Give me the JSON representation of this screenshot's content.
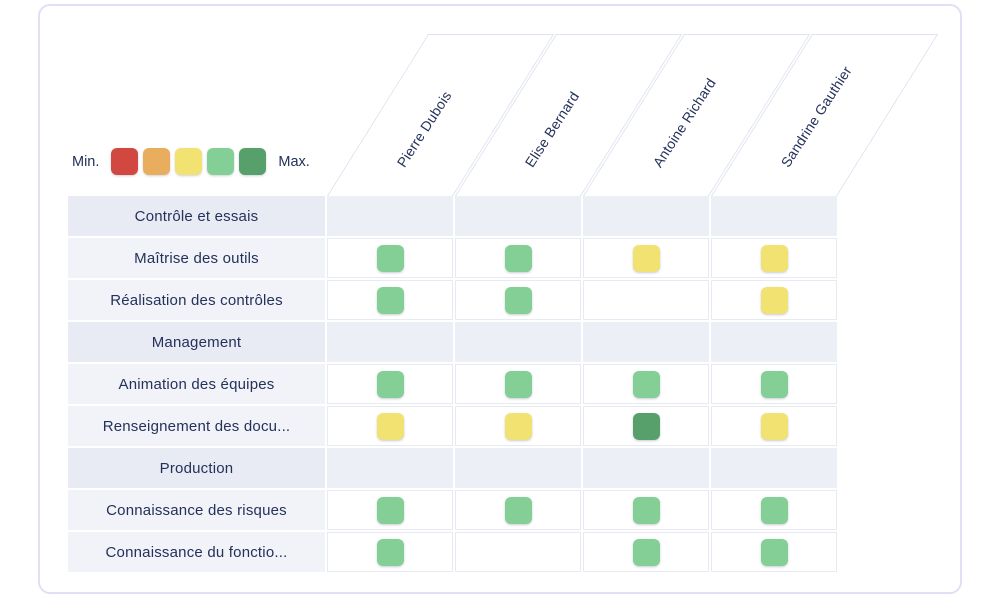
{
  "chart_data": {
    "type": "heatmap",
    "title": "",
    "columns": [
      "Pierre Dubois",
      "Elise Bernard",
      "Antoine Richard",
      "Sandrine Gauthier"
    ],
    "rows": [
      {
        "type": "category",
        "label": "Contrôle et essais",
        "levels": null
      },
      {
        "type": "skill",
        "label": "Maîtrise des outils",
        "levels": [
          4,
          4,
          3,
          3
        ]
      },
      {
        "type": "skill",
        "label": "Réalisation des contrôles",
        "levels": [
          4,
          4,
          null,
          3
        ]
      },
      {
        "type": "category",
        "label": "Management",
        "levels": null
      },
      {
        "type": "skill",
        "label": "Animation des équipes",
        "levels": [
          4,
          4,
          4,
          4
        ]
      },
      {
        "type": "skill",
        "label": "Renseignement des docu...",
        "levels": [
          3,
          3,
          5,
          3
        ]
      },
      {
        "type": "category",
        "label": "Production",
        "levels": null
      },
      {
        "type": "skill",
        "label": "Connaissance des risques",
        "levels": [
          4,
          4,
          4,
          4
        ]
      },
      {
        "type": "skill",
        "label": "Connaissance du fonctio...",
        "levels": [
          4,
          null,
          4,
          4
        ]
      }
    ],
    "legend": {
      "min_label": "Min.",
      "max_label": "Max.",
      "colors": [
        "#d0483f",
        "#e9ad5e",
        "#f1e272",
        "#83cf96",
        "#57a06c"
      ]
    },
    "level_colors": {
      "1": "#d0483f",
      "2": "#e9ad5e",
      "3": "#f1e272",
      "4": "#83cf96",
      "5": "#57a06c"
    },
    "legend_position": "top-left",
    "grid": "on"
  }
}
